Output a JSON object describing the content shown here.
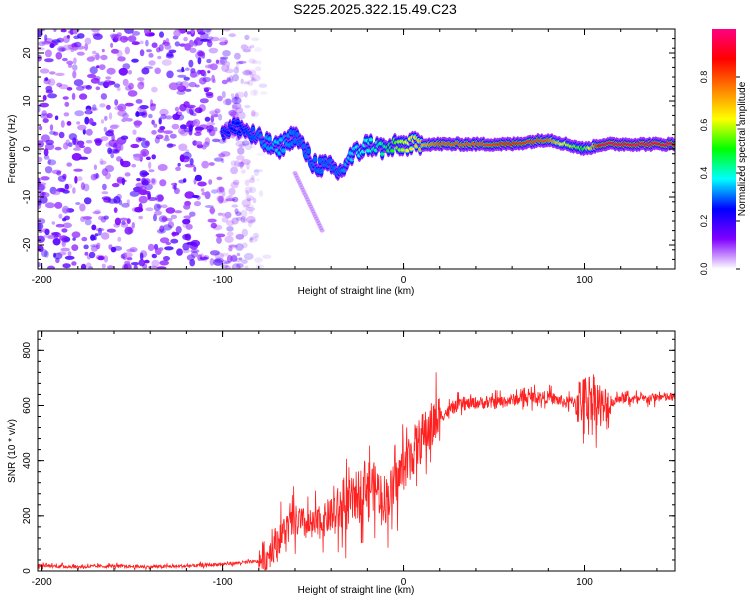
{
  "title": "S225.2025.322.15.49.C23",
  "chart_data": [
    {
      "type": "heatmap",
      "title": "S225.2025.322.15.49.C23",
      "xlabel": "Height of straight line (km)",
      "ylabel": "Frequency (Hz)",
      "xlim": [
        -202,
        150
      ],
      "ylim": [
        -25,
        25
      ],
      "xticks": [
        -200,
        -100,
        0,
        100
      ],
      "yticks": [
        -20,
        -10,
        0,
        10,
        20
      ],
      "colorbar": {
        "label": "Normalized spectral amplitude",
        "range": [
          0,
          1
        ],
        "ticks": [
          "0.0",
          "0.2",
          "0.4",
          "0.6",
          "0.8"
        ],
        "colors": [
          "#ffffff",
          "#8000ff",
          "#0000ff",
          "#00ffff",
          "#00ff00",
          "#ffff00",
          "#ff8000",
          "#ff0000",
          "#ff0080"
        ]
      },
      "ridge": {
        "x": [
          -100,
          -90,
          -80,
          -70,
          -60,
          -50,
          -40,
          -35,
          -30,
          -20,
          -10,
          0,
          20,
          40,
          60,
          80,
          90,
          100,
          110,
          150
        ],
        "freq": [
          4,
          4.5,
          2,
          0,
          3,
          -3,
          -4,
          -5,
          -2,
          1,
          0,
          1,
          1,
          1,
          1,
          2,
          1,
          0,
          1,
          1
        ],
        "amplitude": [
          0.2,
          0.25,
          0.3,
          0.35,
          0.3,
          0.3,
          0.3,
          0.3,
          0.35,
          0.4,
          0.45,
          0.6,
          0.8,
          0.8,
          0.85,
          0.8,
          0.6,
          0.5,
          0.95,
          0.95
        ]
      },
      "noise_region": {
        "x_range": [
          -202,
          -85
        ],
        "freq_range": [
          -25,
          25
        ],
        "amplitude_range": [
          0.05,
          0.2
        ]
      }
    },
    {
      "type": "line",
      "xlabel": "Height of straight line (km)",
      "ylabel": "SNR (10 * v/v)",
      "xlim": [
        -202,
        150
      ],
      "ylim": [
        0,
        870
      ],
      "xticks": [
        -200,
        -100,
        0,
        100
      ],
      "yticks": [
        0,
        200,
        400,
        600,
        800
      ],
      "series": [
        {
          "name": "SNR",
          "color": "#ff2020",
          "x": [
            -202,
            -180,
            -160,
            -140,
            -120,
            -100,
            -90,
            -80,
            -75,
            -70,
            -65,
            -60,
            -55,
            -50,
            -45,
            -40,
            -35,
            -30,
            -25,
            -20,
            -15,
            -10,
            -5,
            0,
            5,
            10,
            15,
            20,
            25,
            30,
            40,
            50,
            60,
            70,
            80,
            90,
            100,
            105,
            110,
            115,
            120,
            130,
            140,
            150
          ],
          "y": [
            20,
            15,
            18,
            15,
            18,
            25,
            30,
            35,
            60,
            110,
            150,
            180,
            170,
            160,
            180,
            200,
            220,
            240,
            280,
            320,
            300,
            260,
            300,
            380,
            430,
            480,
            520,
            560,
            580,
            600,
            610,
            610,
            620,
            630,
            630,
            610,
            620,
            640,
            580,
            610,
            630,
            620,
            630,
            630
          ]
        }
      ]
    }
  ]
}
